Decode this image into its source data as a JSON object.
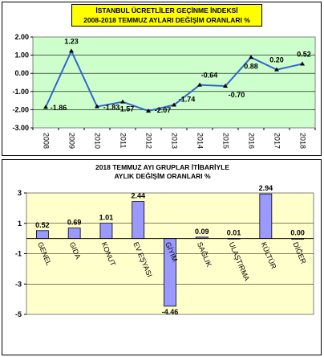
{
  "chart_data": [
    {
      "type": "line",
      "title": "İSTANBUL ÜCRETLİLER GEÇİNME İNDEKSİ",
      "subtitle": "2008-2018 TEMMUZ AYLARI DEĞİŞİM ORANLARI %",
      "categories": [
        "2008",
        "2009",
        "2010",
        "2011",
        "2012",
        "2013",
        "2014",
        "2015",
        "2016",
        "2017",
        "2018"
      ],
      "values": [
        -1.86,
        1.23,
        -1.83,
        -1.57,
        -2.07,
        -1.74,
        -0.64,
        -0.7,
        0.88,
        0.2,
        0.52
      ],
      "labels": [
        "-1.86",
        "1.23",
        "-1.83",
        "-1.57",
        "-2.07",
        "-1.74",
        "-0.64",
        "-0.70",
        "0.88",
        "0.20",
        "0.52"
      ],
      "ylim": [
        -3,
        2
      ],
      "yticks": [
        "2.00",
        "1.00",
        "0.00",
        "-1.00",
        "-2.00",
        "-3.00"
      ],
      "grid": true,
      "plot_background": "#ccffcc",
      "line_color": "#3366cc"
    },
    {
      "type": "bar",
      "title": "2018 TEMMUZ AYI GRUPLAR İTİBARİYLE",
      "subtitle": "AYLIK DEĞİŞİM ORANLARI %",
      "categories": [
        "GENEL",
        "GIDA",
        "KONUT",
        "EV EŞYASI",
        "GİYİM",
        "SAĞLIK",
        "ULAŞTIRMA",
        "KÜLTÜR",
        "DİĞER"
      ],
      "values": [
        0.52,
        0.69,
        1.01,
        2.44,
        -4.46,
        0.09,
        0.01,
        2.94,
        0.0
      ],
      "labels": [
        "0.52",
        "0.69",
        "1.01",
        "2.44",
        "-4.46",
        "0.09",
        "0.01",
        "2.94",
        "0.00"
      ],
      "ylim": [
        -5,
        3
      ],
      "yticks": [
        "3",
        "1",
        "-1",
        "-3",
        "-5"
      ],
      "grid": true,
      "plot_background": "#ffffcc",
      "bar_color": "#9999ff"
    }
  ]
}
